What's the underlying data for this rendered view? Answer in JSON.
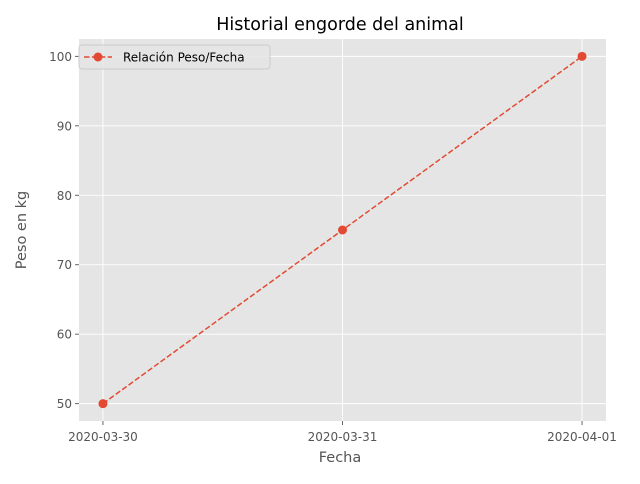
{
  "chart_data": {
    "type": "line",
    "title": "Historial engorde del animal",
    "xlabel": "Fecha",
    "ylabel": "Peso en kg",
    "x": [
      "2020-03-30",
      "2020-03-31",
      "2020-04-01"
    ],
    "series": [
      {
        "name": "Relación Peso/Fecha",
        "values": [
          50,
          75,
          100
        ],
        "color": "#E24A33",
        "line_style": "dashed",
        "marker": "circle"
      }
    ],
    "ylim": [
      47.5,
      102.5
    ],
    "yticks": [
      50,
      60,
      70,
      80,
      90,
      100
    ],
    "grid": true,
    "legend": "top-left",
    "style": {
      "plot_background": "#E5E5E5",
      "grid_color": "#FFFFFF",
      "text_color": "#555555",
      "title_color": "#000000"
    }
  }
}
